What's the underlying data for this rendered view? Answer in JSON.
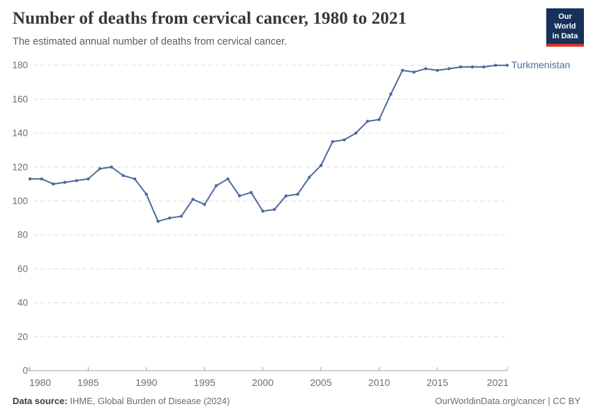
{
  "header": {
    "title": "Number of deaths from cervical cancer, 1980 to 2021",
    "subtitle": "The estimated annual number of deaths from cervical cancer.",
    "logo": {
      "line1": "Our World",
      "line2": "in Data"
    }
  },
  "chart_data": {
    "type": "line",
    "title": "Number of deaths from cervical cancer, 1980 to 2021",
    "xlabel": "",
    "ylabel": "",
    "x": [
      1980,
      1981,
      1982,
      1983,
      1984,
      1985,
      1986,
      1987,
      1988,
      1989,
      1990,
      1991,
      1992,
      1993,
      1994,
      1995,
      1996,
      1997,
      1998,
      1999,
      2000,
      2001,
      2002,
      2003,
      2004,
      2005,
      2006,
      2007,
      2008,
      2009,
      2010,
      2011,
      2012,
      2013,
      2014,
      2015,
      2016,
      2017,
      2018,
      2019,
      2020,
      2021
    ],
    "series": [
      {
        "name": "Turkmenistan",
        "color": "#4c6a9c",
        "values": [
          113,
          113,
          110,
          111,
          112,
          113,
          119,
          120,
          115,
          113,
          104,
          88,
          90,
          91,
          101,
          98,
          109,
          113,
          103,
          105,
          94,
          95,
          103,
          104,
          114,
          121,
          135,
          136,
          140,
          147,
          148,
          163,
          177,
          176,
          178,
          177,
          178,
          179,
          179,
          179,
          180,
          180
        ]
      }
    ],
    "x_tick_labels": [
      1980,
      1985,
      1990,
      1995,
      2000,
      2005,
      2010,
      2015,
      2021
    ],
    "y_tick_labels": [
      0,
      20,
      40,
      60,
      80,
      100,
      120,
      140,
      160,
      180
    ],
    "xlim": [
      1980,
      2021
    ],
    "ylim": [
      0,
      180
    ],
    "grid": "horizontal-dashed",
    "legend": "entity-label-at-line-end"
  },
  "footer": {
    "source_label": "Data source:",
    "source_text": "IHME, Global Burden of Disease (2024)",
    "rights": "OurWorldinData.org/cancer | CC BY"
  },
  "colors": {
    "line": "#4c6a9c",
    "grid": "#dcdcdc",
    "axis": "#a3a3a3",
    "tick_text": "#6e6e6e",
    "logo_bg": "#16325a",
    "logo_accent": "#dc3428"
  }
}
